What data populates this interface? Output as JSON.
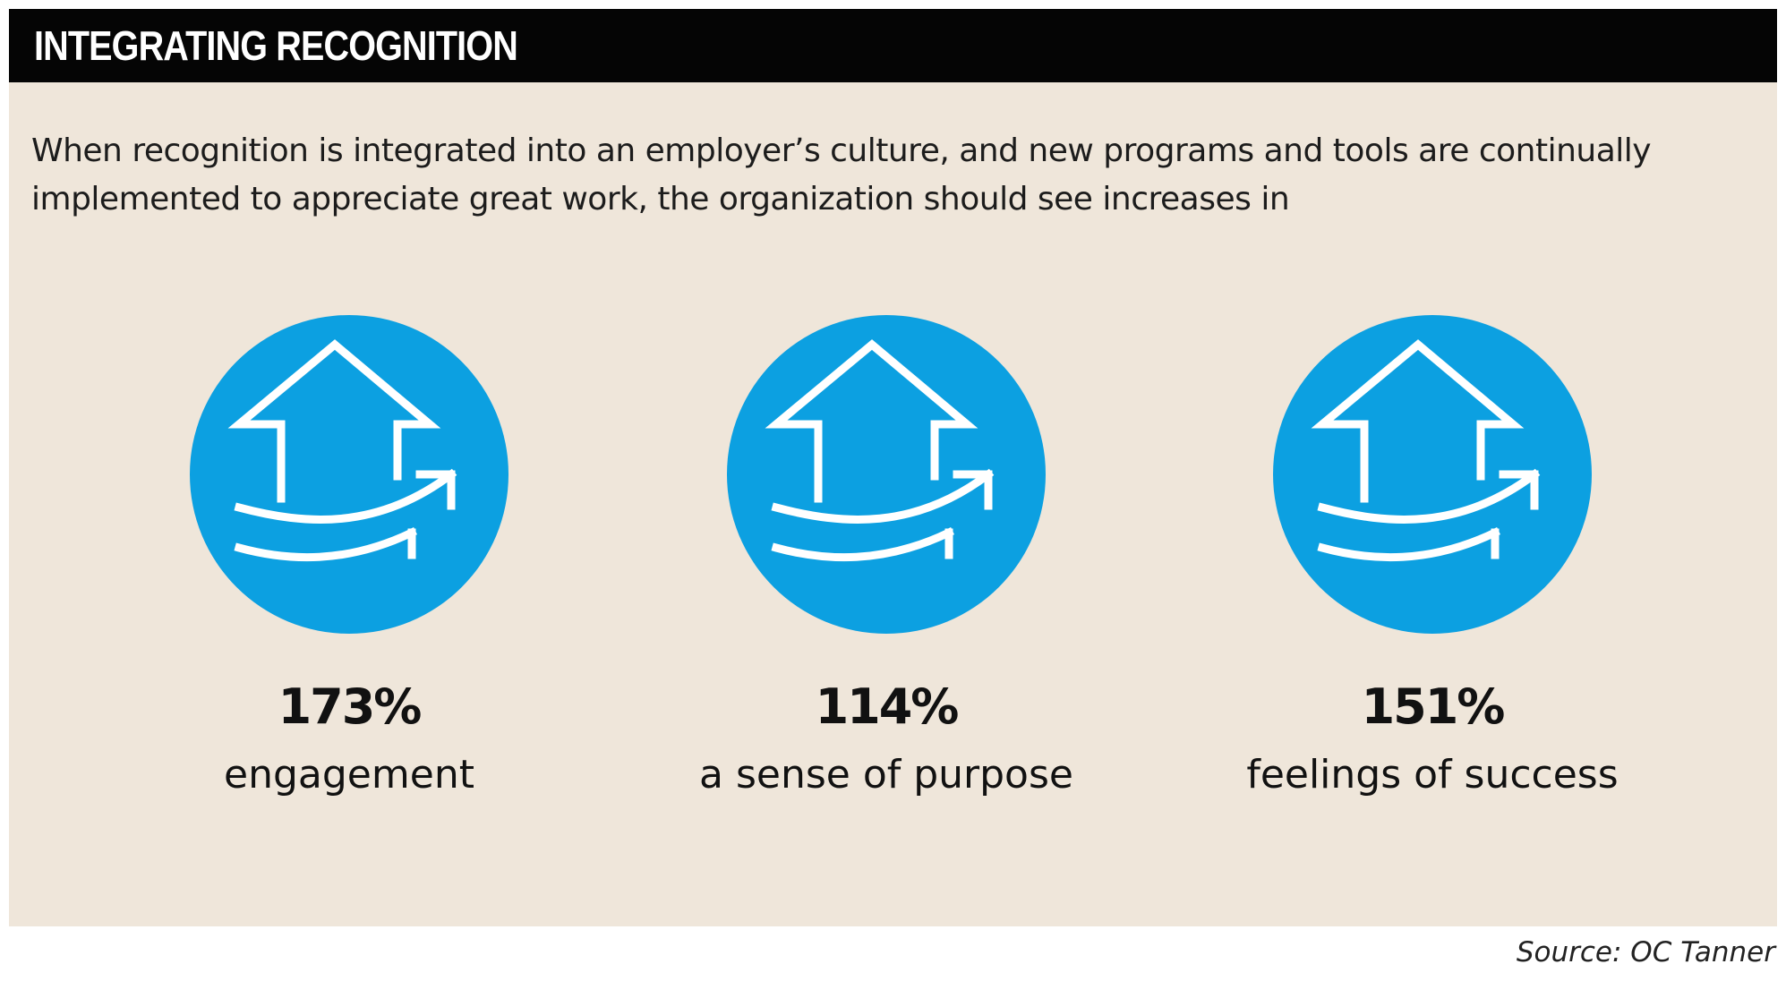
{
  "header": {
    "title": "INTEGRATING RECOGNITION"
  },
  "intro": {
    "text": "When recognition is integrated into an employer’s culture, and new programs and tools are continually implemented to appreciate great work, the organization should see increases in"
  },
  "colors": {
    "accent": "#0ca0e1",
    "background": "#efe6da",
    "header": "#050505"
  },
  "stats": [
    {
      "value": "173%",
      "label": "engagement",
      "icon": "house-growth-icon"
    },
    {
      "value": "114%",
      "label": "a sense of purpose",
      "icon": "house-growth-icon"
    },
    {
      "value": "151%",
      "label": "feelings of success",
      "icon": "house-growth-icon"
    }
  ],
  "source": {
    "text": "Source: OC Tanner"
  }
}
